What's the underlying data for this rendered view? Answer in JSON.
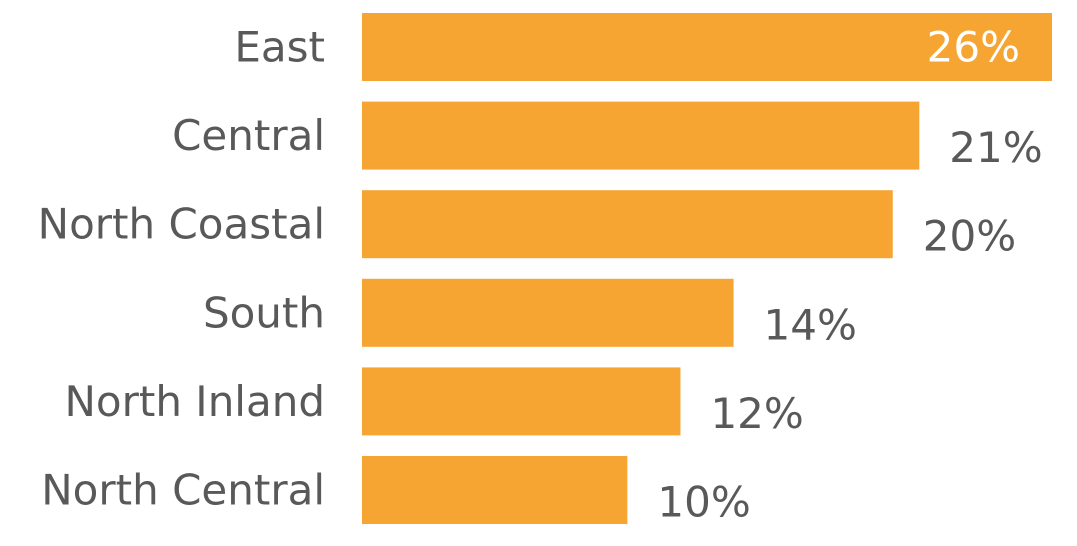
{
  "chart_data": {
    "type": "bar",
    "orientation": "horizontal",
    "categories": [
      "East",
      "Central",
      "North Coastal",
      "South",
      "North Inland",
      "North Central"
    ],
    "values": [
      26,
      21,
      20,
      14,
      12,
      10
    ],
    "data_labels": [
      "26%",
      "21%",
      "20%",
      "14%",
      "12%",
      "10%"
    ],
    "value_unit": "%",
    "xlim": [
      0,
      26
    ],
    "grid": false,
    "legend": "none",
    "title": "",
    "xlabel": "",
    "ylabel": ""
  },
  "colors": {
    "bar": "#F7A532",
    "category_label": "#595959",
    "value_label": "#595959",
    "value_label_inside": "#ffffff",
    "background": "#ffffff"
  }
}
